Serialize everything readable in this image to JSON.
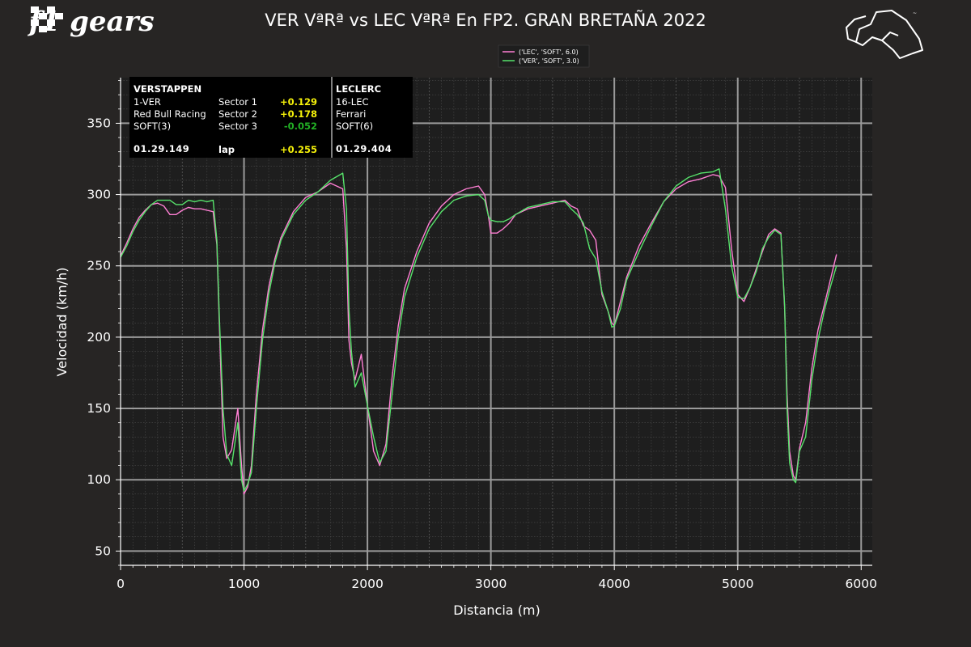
{
  "logo": {
    "text": "f1 gears"
  },
  "chart_data": {
    "type": "line",
    "title": "VER VªRª vs LEC VªRª En FP2. GRAN BRETAÑA 2022",
    "xlabel": "Distancia (m)",
    "ylabel": "Velocidad (km/h)",
    "xlim": [
      0,
      6090
    ],
    "ylim": [
      40,
      382
    ],
    "xticks": [
      0,
      1000,
      2000,
      3000,
      4000,
      5000,
      6000
    ],
    "yticks": [
      50,
      100,
      150,
      200,
      250,
      300,
      350
    ],
    "grid": true,
    "legend_position": "top-center",
    "series": [
      {
        "name": "('LEC', 'SOFT', 6.0)",
        "color": "#ff7fd4",
        "x": [
          0,
          50,
          100,
          150,
          200,
          250,
          300,
          350,
          400,
          450,
          500,
          550,
          600,
          650,
          700,
          750,
          780,
          800,
          830,
          860,
          900,
          950,
          980,
          1000,
          1030,
          1060,
          1100,
          1150,
          1200,
          1250,
          1300,
          1400,
          1500,
          1600,
          1700,
          1800,
          1830,
          1850,
          1870,
          1900,
          1950,
          2000,
          2050,
          2100,
          2150,
          2200,
          2250,
          2300,
          2400,
          2500,
          2600,
          2700,
          2800,
          2900,
          2950,
          2980,
          3000,
          3050,
          3100,
          3150,
          3200,
          3300,
          3400,
          3500,
          3600,
          3650,
          3700,
          3750,
          3800,
          3850,
          3900,
          3950,
          3980,
          4000,
          4050,
          4100,
          4200,
          4300,
          4400,
          4500,
          4600,
          4700,
          4800,
          4850,
          4900,
          4950,
          5000,
          5050,
          5100,
          5150,
          5200,
          5250,
          5300,
          5350,
          5380,
          5400,
          5420,
          5450,
          5470,
          5500,
          5550,
          5600,
          5650,
          5700,
          5750,
          5800
        ],
        "values": [
          257,
          266,
          276,
          284,
          289,
          293,
          294,
          292,
          286,
          286,
          289,
          291,
          290,
          290,
          289,
          288,
          265,
          210,
          130,
          115,
          121,
          150,
          110,
          90,
          95,
          110,
          160,
          205,
          235,
          255,
          270,
          288,
          298,
          302,
          308,
          304,
          262,
          198,
          182,
          170,
          188,
          152,
          120,
          110,
          125,
          172,
          208,
          234,
          260,
          280,
          292,
          300,
          304,
          306,
          300,
          285,
          273,
          273,
          276,
          280,
          286,
          290,
          292,
          294,
          296,
          292,
          290,
          278,
          275,
          268,
          230,
          218,
          210,
          208,
          225,
          242,
          264,
          280,
          295,
          304,
          309,
          311,
          314,
          313,
          305,
          262,
          230,
          225,
          235,
          248,
          260,
          272,
          276,
          273,
          220,
          160,
          120,
          103,
          100,
          122,
          140,
          178,
          205,
          222,
          240,
          258
        ]
      },
      {
        "name": "('VER', 'SOFT', 3.0)",
        "color": "#57e36b",
        "x": [
          0,
          50,
          100,
          150,
          200,
          250,
          300,
          350,
          400,
          450,
          500,
          550,
          600,
          650,
          700,
          750,
          780,
          800,
          830,
          860,
          900,
          950,
          980,
          1000,
          1030,
          1060,
          1100,
          1150,
          1200,
          1250,
          1300,
          1400,
          1500,
          1600,
          1700,
          1800,
          1830,
          1850,
          1870,
          1900,
          1950,
          2000,
          2050,
          2100,
          2150,
          2200,
          2250,
          2300,
          2400,
          2500,
          2600,
          2700,
          2800,
          2900,
          2950,
          2980,
          3000,
          3050,
          3100,
          3150,
          3200,
          3300,
          3400,
          3500,
          3600,
          3650,
          3700,
          3750,
          3800,
          3850,
          3900,
          3950,
          3980,
          4000,
          4050,
          4100,
          4200,
          4300,
          4400,
          4500,
          4600,
          4700,
          4800,
          4850,
          4900,
          4950,
          5000,
          5050,
          5100,
          5150,
          5200,
          5250,
          5300,
          5350,
          5380,
          5400,
          5420,
          5450,
          5470,
          5500,
          5550,
          5600,
          5650,
          5700,
          5750,
          5800
        ],
        "values": [
          256,
          264,
          274,
          282,
          288,
          293,
          296,
          296,
          296,
          293,
          293,
          296,
          295,
          296,
          295,
          296,
          268,
          215,
          150,
          118,
          110,
          140,
          100,
          92,
          97,
          105,
          150,
          198,
          230,
          252,
          268,
          286,
          296,
          302,
          310,
          315,
          290,
          220,
          190,
          165,
          175,
          152,
          130,
          112,
          120,
          160,
          200,
          228,
          256,
          276,
          288,
          296,
          299,
          300,
          296,
          285,
          282,
          281,
          281,
          283,
          286,
          291,
          293,
          295,
          295,
          290,
          286,
          280,
          262,
          255,
          232,
          218,
          207,
          208,
          220,
          240,
          260,
          278,
          295,
          306,
          312,
          315,
          316,
          318,
          290,
          250,
          228,
          227,
          235,
          246,
          262,
          270,
          275,
          272,
          222,
          150,
          112,
          100,
          98,
          120,
          130,
          170,
          198,
          218,
          235,
          250
        ]
      }
    ]
  },
  "info_box": {
    "left": {
      "driver": "VERSTAPPEN",
      "code": "1-VER",
      "team": "Red Bull Racing",
      "tyre": "SOFT(3)",
      "time": "01.29.149"
    },
    "sectors": [
      {
        "label": "Sector 1",
        "delta": "+0.129",
        "color": "#f5f10a"
      },
      {
        "label": "Sector 2",
        "delta": "+0.178",
        "color": "#f5f10a"
      },
      {
        "label": "Sector 3",
        "delta": "-0.052",
        "color": "#22b025"
      }
    ],
    "lap": {
      "label": "lap",
      "delta": "+0.255",
      "color": "#f5f10a"
    },
    "right": {
      "driver": "LECLERC",
      "code": "16-LEC",
      "team": "Ferrari",
      "tyre": "SOFT(6)",
      "time": "01.29.404"
    }
  },
  "colors": {
    "background": "#272524",
    "plot_area": "#1e1e1e",
    "grid_major": "#9a9a9a",
    "grid_minor": "#4a4a4a"
  }
}
